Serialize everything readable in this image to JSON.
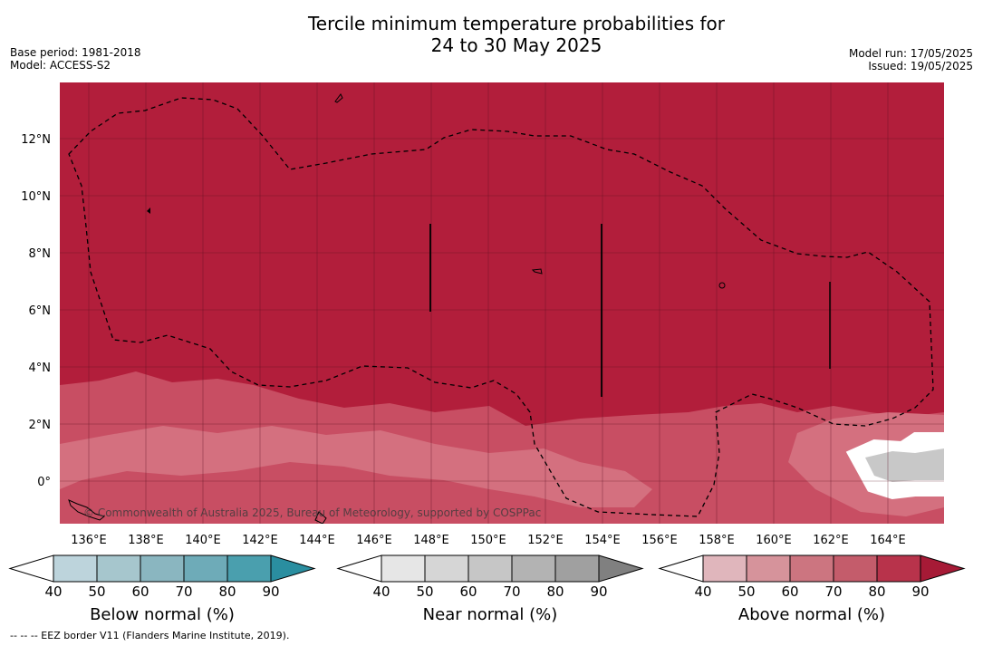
{
  "header": {
    "title_line1": "Tercile minimum temperature probabilities for",
    "title_line2": "24 to 30 May 2025",
    "base_period": "Base period: 1981-2018",
    "model": "Model: ACCESS-S2",
    "model_run": "Model run: 17/05/2025",
    "issued": "Issued: 19/05/2025"
  },
  "map": {
    "lat_labels": [
      "12°N",
      "10°N",
      "8°N",
      "6°N",
      "4°N",
      "2°N",
      "0°"
    ],
    "lon_labels": [
      "136°E",
      "138°E",
      "140°E",
      "142°E",
      "144°E",
      "146°E",
      "148°E",
      "150°E",
      "152°E",
      "154°E",
      "156°E",
      "158°E",
      "160°E",
      "162°E",
      "164°E"
    ],
    "copyright": "© Commonwealth of Australia 2025, Bureau of Meteorology, supported by COSPPac",
    "colors": {
      "dominant": "#b21e3b",
      "above_70": "#c84e63",
      "above_60": "#d4707f",
      "near_40": "#dcdcdc",
      "near_50": "#c8c8c8"
    }
  },
  "colorbars": [
    {
      "title": "Below normal (%)",
      "ticks": [
        "40",
        "50",
        "60",
        "70",
        "80",
        "90"
      ],
      "colors": [
        "#ffffff",
        "#bdd4dc",
        "#a6c6cd",
        "#8ab6c0",
        "#6eabb8",
        "#4a9fae",
        "#2a8ea0"
      ]
    },
    {
      "title": "Near normal (%)",
      "ticks": [
        "40",
        "50",
        "60",
        "70",
        "80",
        "90"
      ],
      "colors": [
        "#ffffff",
        "#e6e6e6",
        "#d6d6d6",
        "#c6c6c6",
        "#b3b3b3",
        "#a0a0a0",
        "#808080"
      ]
    },
    {
      "title": "Above normal (%)",
      "ticks": [
        "40",
        "50",
        "60",
        "70",
        "80",
        "90"
      ],
      "colors": [
        "#ffffff",
        "#e0b6bc",
        "#d6939b",
        "#cc7580",
        "#c45c6b",
        "#b8334b",
        "#a61a36"
      ]
    }
  ],
  "footer": "--  --  -- EEZ border V11 (Flanders Marine Institute, 2019)."
}
